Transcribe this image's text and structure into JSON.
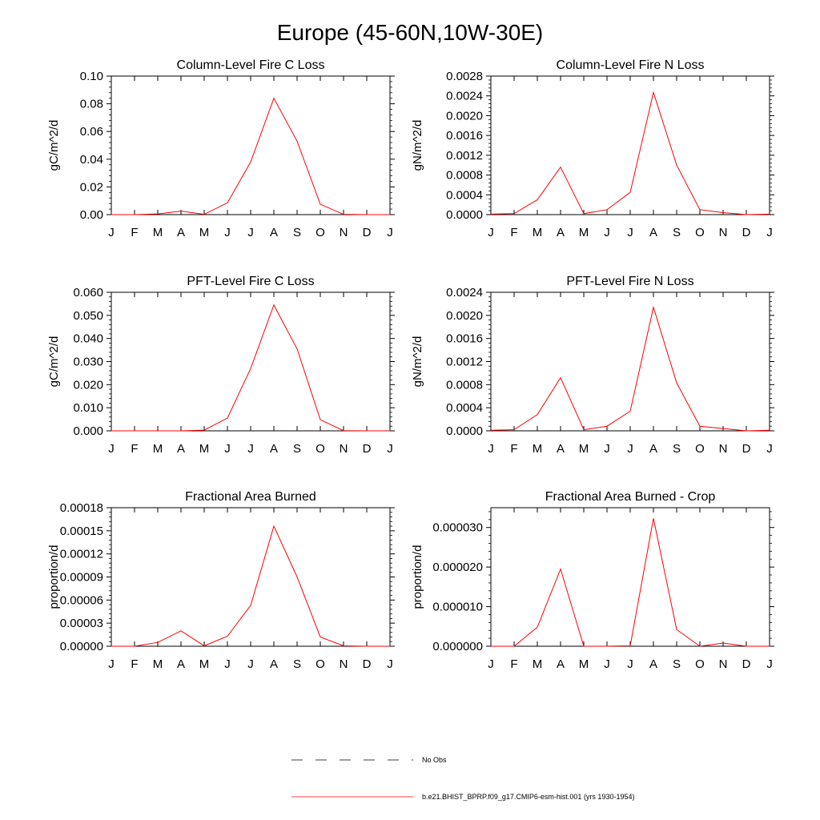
{
  "title": "Europe (45-60N,10W-30E)",
  "legend": {
    "obs_label": "No Obs",
    "model_label": "b.e21.BHIST_BPRP.f09_g17.CMIP6-esm-hist.001 (yrs 1930-1954)",
    "model_color": "#ff0000",
    "obs_color": "#000000"
  },
  "chart_data": [
    {
      "type": "line",
      "title": "Column-Level Fire C Loss",
      "ylabel": "gC/m^2/d",
      "x": [
        "J",
        "F",
        "M",
        "A",
        "M",
        "J",
        "J",
        "A",
        "S",
        "O",
        "N",
        "D",
        "J"
      ],
      "ylim": [
        0,
        0.1
      ],
      "yticks": [
        "0.00",
        "0.02",
        "0.04",
        "0.06",
        "0.08",
        "0.10"
      ],
      "series": [
        {
          "values": [
            0.0,
            0.0,
            0.0005,
            0.0025,
            0.0002,
            0.0085,
            0.038,
            0.084,
            0.053,
            0.0075,
            0.0002,
            0.0,
            0.0
          ]
        }
      ]
    },
    {
      "type": "line",
      "title": "Column-Level Fire N Loss",
      "ylabel": "gN/m^2/d",
      "x": [
        "J",
        "F",
        "M",
        "A",
        "M",
        "J",
        "J",
        "A",
        "S",
        "O",
        "N",
        "D",
        "J"
      ],
      "ylim": [
        0,
        0.0028
      ],
      "yticks": [
        "0.0000",
        "0.0004",
        "0.0008",
        "0.0012",
        "0.0016",
        "0.0020",
        "0.0024",
        "0.0028"
      ],
      "series": [
        {
          "values": [
            1e-05,
            2e-05,
            0.0003,
            0.00096,
            2e-05,
            0.0001,
            0.00045,
            0.00247,
            0.001,
            0.0001,
            4e-05,
            0.0,
            1e-05
          ]
        }
      ]
    },
    {
      "type": "line",
      "title": "PFT-Level Fire C Loss",
      "ylabel": "gC/m^2/d",
      "x": [
        "J",
        "F",
        "M",
        "A",
        "M",
        "J",
        "J",
        "A",
        "S",
        "O",
        "N",
        "D",
        "J"
      ],
      "ylim": [
        0,
        0.06
      ],
      "yticks": [
        "0.000",
        "0.010",
        "0.020",
        "0.030",
        "0.040",
        "0.050",
        "0.060"
      ],
      "series": [
        {
          "values": [
            0.0,
            0.0,
            0.0,
            0.0,
            0.0003,
            0.0055,
            0.027,
            0.0545,
            0.0355,
            0.0048,
            0.0001,
            0.0,
            0.0
          ]
        }
      ]
    },
    {
      "type": "line",
      "title": "PFT-Level Fire N Loss",
      "ylabel": "gN/m^2/d",
      "x": [
        "J",
        "F",
        "M",
        "A",
        "M",
        "J",
        "J",
        "A",
        "S",
        "O",
        "N",
        "D",
        "J"
      ],
      "ylim": [
        0,
        0.0024
      ],
      "yticks": [
        "0.0000",
        "0.0004",
        "0.0008",
        "0.0012",
        "0.0016",
        "0.0020",
        "0.0024"
      ],
      "series": [
        {
          "values": [
            1e-05,
            2e-05,
            0.00028,
            0.00092,
            2e-05,
            8e-05,
            0.00034,
            0.00214,
            0.00083,
            8e-05,
            4e-05,
            0.0,
            1e-05
          ]
        }
      ]
    },
    {
      "type": "line",
      "title": "Fractional Area Burned",
      "ylabel": "proportion/d",
      "x": [
        "J",
        "F",
        "M",
        "A",
        "M",
        "J",
        "J",
        "A",
        "S",
        "O",
        "N",
        "D",
        "J"
      ],
      "ylim": [
        0,
        0.00018
      ],
      "yticks": [
        "0.00000",
        "0.00003",
        "0.00006",
        "0.00009",
        "0.00012",
        "0.00015",
        "0.00018"
      ],
      "series": [
        {
          "values": [
            0.0,
            0.0,
            5e-06,
            2e-05,
            5e-07,
            1.3e-05,
            5.3e-05,
            0.000156,
            9e-05,
            1.2e-05,
            5e-07,
            0.0,
            0.0
          ]
        }
      ]
    },
    {
      "type": "line",
      "title": "Fractional Area Burned - Crop",
      "ylabel": "proportion/d",
      "x": [
        "J",
        "F",
        "M",
        "A",
        "M",
        "J",
        "J",
        "A",
        "S",
        "O",
        "N",
        "D",
        "J"
      ],
      "ylim": [
        0,
        3.5e-05
      ],
      "yticks": [
        "0.000000",
        "0.000010",
        "0.000020",
        "0.000030"
      ],
      "ytick_values": [
        0,
        1e-05,
        2e-05,
        3e-05
      ],
      "series": [
        {
          "values": [
            0.0,
            0.0,
            4.8e-06,
            1.95e-05,
            0.0,
            0.0,
            1e-07,
            3.23e-05,
            4.2e-06,
            0.0,
            8e-07,
            0.0,
            0.0
          ]
        }
      ]
    }
  ]
}
